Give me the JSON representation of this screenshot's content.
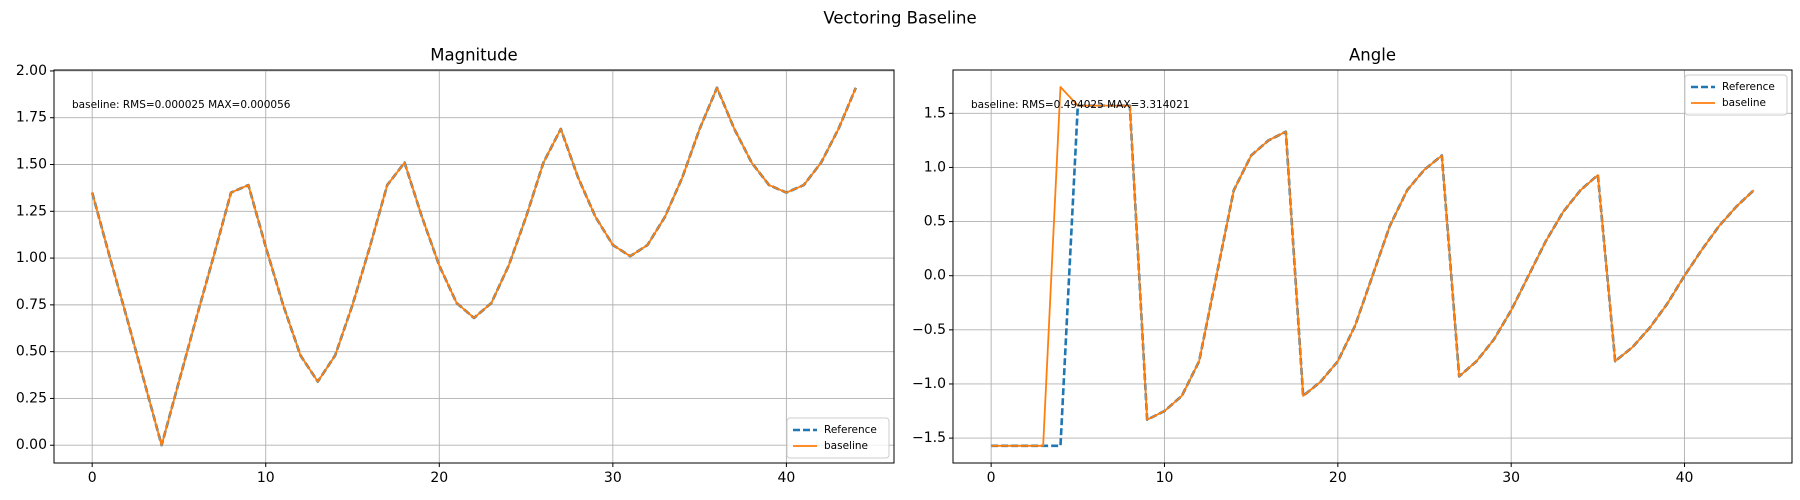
{
  "title": "Vectoring Baseline",
  "chart_data": [
    {
      "type": "line",
      "title": "Magnitude",
      "annotation": "baseline: RMS=0.000025 MAX=0.000056",
      "x": [
        0,
        1,
        2,
        3,
        4,
        5,
        6,
        7,
        8,
        9,
        10,
        11,
        12,
        13,
        14,
        15,
        16,
        17,
        18,
        19,
        20,
        21,
        22,
        23,
        24,
        25,
        26,
        27,
        28,
        29,
        30,
        31,
        32,
        33,
        34,
        35,
        36,
        37,
        38,
        39,
        40,
        41,
        42,
        43,
        44
      ],
      "series": [
        {
          "name": "Reference",
          "color": "#1f77b4",
          "linestyle": "dashed",
          "values": [
            1.35,
            1.01,
            0.68,
            0.34,
            0.0,
            0.34,
            0.68,
            1.01,
            1.35,
            1.39,
            1.06,
            0.75,
            0.48,
            0.34,
            0.48,
            0.75,
            1.06,
            1.39,
            1.51,
            1.22,
            0.96,
            0.76,
            0.68,
            0.76,
            0.96,
            1.22,
            1.51,
            1.69,
            1.43,
            1.22,
            1.07,
            1.01,
            1.07,
            1.22,
            1.43,
            1.69,
            1.91,
            1.69,
            1.51,
            1.39,
            1.35,
            1.39,
            1.51,
            1.69,
            1.91
          ]
        },
        {
          "name": "baseline",
          "color": "#ff7f0e",
          "linestyle": "solid",
          "values": [
            1.35,
            1.01,
            0.68,
            0.34,
            0.0,
            0.34,
            0.68,
            1.01,
            1.35,
            1.39,
            1.06,
            0.75,
            0.48,
            0.34,
            0.48,
            0.75,
            1.06,
            1.39,
            1.51,
            1.22,
            0.96,
            0.76,
            0.68,
            0.76,
            0.96,
            1.22,
            1.51,
            1.69,
            1.43,
            1.22,
            1.07,
            1.01,
            1.07,
            1.22,
            1.43,
            1.69,
            1.91,
            1.69,
            1.51,
            1.39,
            1.35,
            1.39,
            1.51,
            1.69,
            1.91
          ]
        }
      ],
      "xlim": [
        -2.2,
        46.2
      ],
      "xticks": [
        0,
        10,
        20,
        30,
        40
      ],
      "ylim": [
        -0.095,
        2.005
      ],
      "yticks": [
        {
          "value": 0,
          "label": "0.00"
        },
        0.25,
        {
          "value": 0.5,
          "label": "0.50"
        },
        0.75,
        {
          "value": 1,
          "label": "1.00"
        },
        1.25,
        {
          "value": 1.5,
          "label": "1.50"
        },
        1.75,
        {
          "value": 2,
          "label": "2.00"
        }
      ],
      "grid": true,
      "legend": "lower right"
    },
    {
      "type": "line",
      "title": "Angle",
      "annotation": "baseline: RMS=0.494025 MAX=3.314021",
      "x": [
        0,
        1,
        2,
        3,
        4,
        5,
        6,
        7,
        8,
        9,
        10,
        11,
        12,
        13,
        14,
        15,
        16,
        17,
        18,
        19,
        20,
        21,
        22,
        23,
        24,
        25,
        26,
        27,
        28,
        29,
        30,
        31,
        32,
        33,
        34,
        35,
        36,
        37,
        38,
        39,
        40,
        41,
        42,
        43,
        44
      ],
      "series": [
        {
          "name": "Reference",
          "color": "#1f77b4",
          "linestyle": "dashed",
          "values": [
            -1.571,
            -1.571,
            -1.571,
            -1.571,
            -1.571,
            1.571,
            1.571,
            1.571,
            1.571,
            -1.33,
            -1.25,
            -1.11,
            -0.79,
            0.0,
            0.79,
            1.11,
            1.25,
            1.33,
            -1.11,
            -0.98,
            -0.79,
            -0.46,
            0.0,
            0.46,
            0.79,
            0.98,
            1.11,
            -0.93,
            -0.79,
            -0.59,
            -0.32,
            0.0,
            0.32,
            0.59,
            0.79,
            0.93,
            -0.79,
            -0.66,
            -0.48,
            -0.26,
            0.0,
            0.24,
            0.46,
            0.64,
            0.79
          ]
        },
        {
          "name": "baseline",
          "color": "#ff7f0e",
          "linestyle": "solid",
          "values": [
            -1.571,
            -1.571,
            -1.571,
            -1.571,
            1.743,
            1.571,
            1.571,
            1.571,
            1.571,
            -1.33,
            -1.25,
            -1.11,
            -0.79,
            0.0,
            0.79,
            1.11,
            1.25,
            1.33,
            -1.11,
            -0.98,
            -0.79,
            -0.46,
            0.0,
            0.46,
            0.79,
            0.98,
            1.11,
            -0.93,
            -0.79,
            -0.59,
            -0.32,
            0.0,
            0.32,
            0.59,
            0.79,
            0.93,
            -0.79,
            -0.66,
            -0.48,
            -0.26,
            0.0,
            0.24,
            0.46,
            0.64,
            0.79
          ]
        }
      ],
      "xlim": [
        -2.2,
        46.2
      ],
      "xticks": [
        0,
        10,
        20,
        30,
        40
      ],
      "ylim": [
        -1.73,
        1.9
      ],
      "yticks": [
        {
          "value": -1.5,
          "label": "−1.5"
        },
        {
          "value": -1,
          "label": "−1.0"
        },
        {
          "value": -0.5,
          "label": "−0.5"
        },
        {
          "value": 0,
          "label": "0.0"
        },
        0.5,
        {
          "value": 1,
          "label": "1.0"
        },
        1.5
      ],
      "grid": true,
      "legend": "upper right"
    }
  ]
}
